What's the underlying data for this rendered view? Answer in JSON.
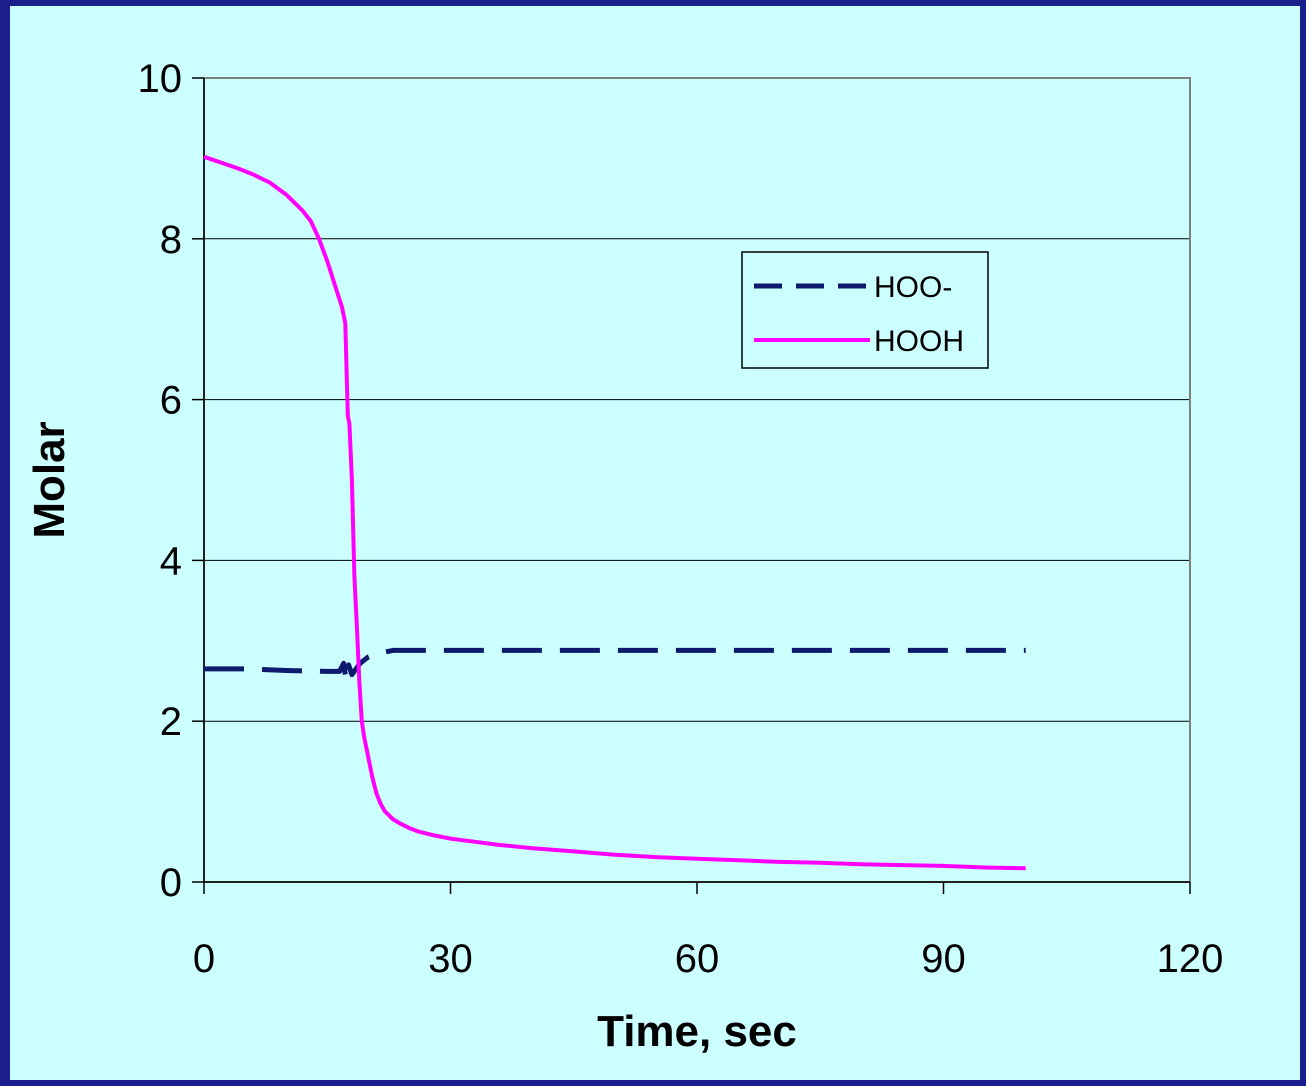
{
  "chart_data": {
    "type": "line",
    "xlabel": "Time, sec",
    "ylabel": "Molar",
    "xlim": [
      0,
      120
    ],
    "ylim": [
      0,
      10
    ],
    "xticks": [
      0,
      30,
      60,
      90,
      120
    ],
    "yticks": [
      0,
      2,
      4,
      6,
      8,
      10
    ],
    "grid": "horizontal",
    "legend_position": "top-right",
    "colors": {
      "HOO-": "#0d1a6e",
      "HOOH": "#ff00ff",
      "background": "#ccffff",
      "border": "#1a1f8c"
    },
    "series": [
      {
        "name": "HOO-",
        "style": "dashed",
        "x": [
          0,
          5,
          10,
          15,
          16.5,
          17,
          17.3,
          17.6,
          18,
          19,
          20,
          21,
          22,
          23,
          30,
          60,
          90,
          100
        ],
        "y": [
          2.65,
          2.65,
          2.63,
          2.62,
          2.62,
          2.72,
          2.5,
          2.7,
          2.58,
          2.72,
          2.8,
          2.84,
          2.86,
          2.88,
          2.88,
          2.88,
          2.88,
          2.88
        ]
      },
      {
        "name": "HOOH",
        "style": "solid",
        "x": [
          0,
          2,
          4,
          6,
          8,
          10,
          12,
          13,
          14,
          15,
          16,
          16.8,
          17.2,
          17.5,
          17.7,
          18.0,
          18.3,
          18.6,
          18.9,
          19.2,
          19.5,
          20,
          20.5,
          21,
          21.5,
          22,
          23,
          24,
          25,
          26,
          28,
          30,
          33,
          36,
          40,
          45,
          50,
          55,
          60,
          65,
          70,
          75,
          80,
          85,
          90,
          95,
          100
        ],
        "y": [
          9.02,
          8.95,
          8.88,
          8.8,
          8.7,
          8.55,
          8.35,
          8.22,
          8.0,
          7.72,
          7.4,
          7.15,
          6.95,
          5.8,
          5.7,
          5.0,
          3.8,
          3.2,
          2.5,
          2.0,
          1.8,
          1.55,
          1.3,
          1.1,
          0.97,
          0.88,
          0.78,
          0.72,
          0.67,
          0.63,
          0.58,
          0.54,
          0.5,
          0.46,
          0.42,
          0.38,
          0.34,
          0.31,
          0.29,
          0.27,
          0.25,
          0.24,
          0.22,
          0.21,
          0.2,
          0.18,
          0.17
        ]
      }
    ]
  }
}
